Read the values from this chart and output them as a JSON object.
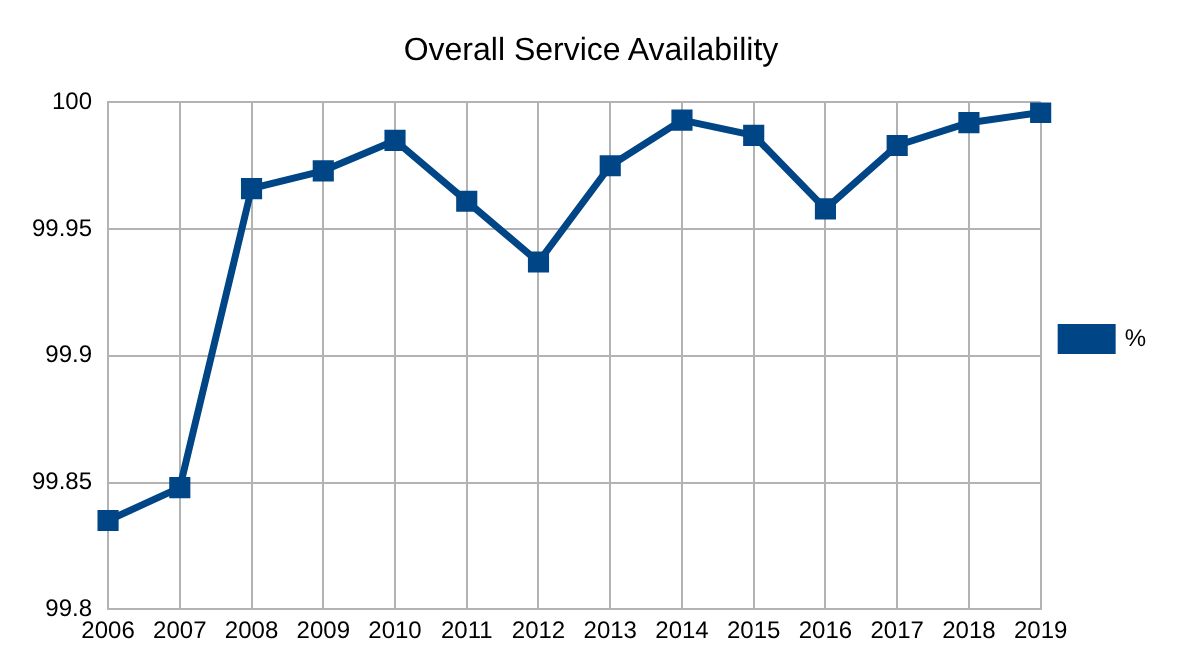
{
  "chart_data": {
    "type": "line",
    "title": "Overall Service Availability",
    "categories": [
      "2006",
      "2007",
      "2008",
      "2009",
      "2010",
      "2011",
      "2012",
      "2013",
      "2014",
      "2015",
      "2016",
      "2017",
      "2018",
      "2019"
    ],
    "series": [
      {
        "name": "%",
        "color": "#004586",
        "values": [
          99.835,
          99.848,
          99.966,
          99.973,
          99.985,
          99.961,
          99.937,
          99.975,
          99.993,
          99.987,
          99.958,
          99.983,
          99.992,
          99.996
        ]
      }
    ],
    "ylim": [
      99.8,
      100
    ],
    "yticks": [
      99.8,
      99.85,
      99.9,
      99.95,
      100
    ],
    "grid": true,
    "legend": "right",
    "marker": "square",
    "line_style": "solid"
  }
}
